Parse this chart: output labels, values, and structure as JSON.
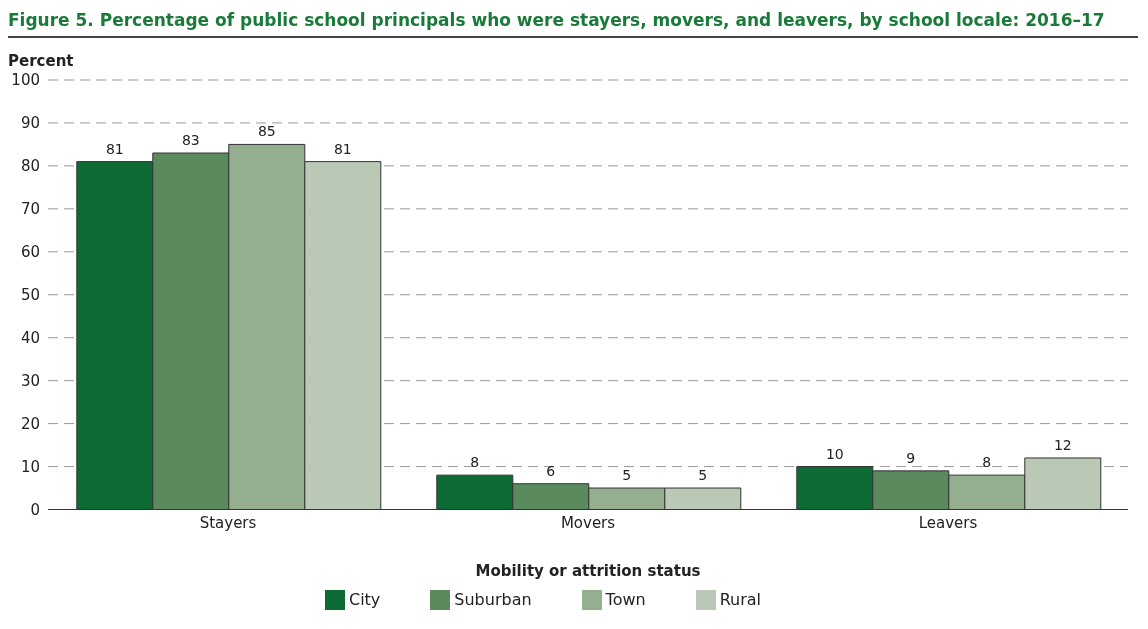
{
  "chart_data": {
    "type": "bar",
    "title": "Figure 5.   Percentage of public school principals who were stayers, movers, and leavers, by school locale: 2016–17",
    "ylabel": "Percent",
    "xlabel": "Mobility or attrition status",
    "categories": [
      "Stayers",
      "Movers",
      "Leavers"
    ],
    "series": [
      {
        "name": "City",
        "color": "#0f6b35",
        "values": [
          81,
          8,
          10
        ]
      },
      {
        "name": "Suburban",
        "color": "#5a8a5e",
        "values": [
          83,
          6,
          9
        ]
      },
      {
        "name": "Town",
        "color": "#96ae90",
        "values": [
          85,
          5,
          8
        ]
      },
      {
        "name": "Rural",
        "color": "#b9c9b6",
        "values": [
          81,
          5,
          12
        ]
      }
    ],
    "ylim": [
      0,
      100
    ],
    "yticks": [
      0,
      10,
      20,
      30,
      40,
      50,
      60,
      70,
      80,
      90,
      100
    ],
    "grid": "y",
    "legend": "bottom",
    "data_labels": true
  }
}
